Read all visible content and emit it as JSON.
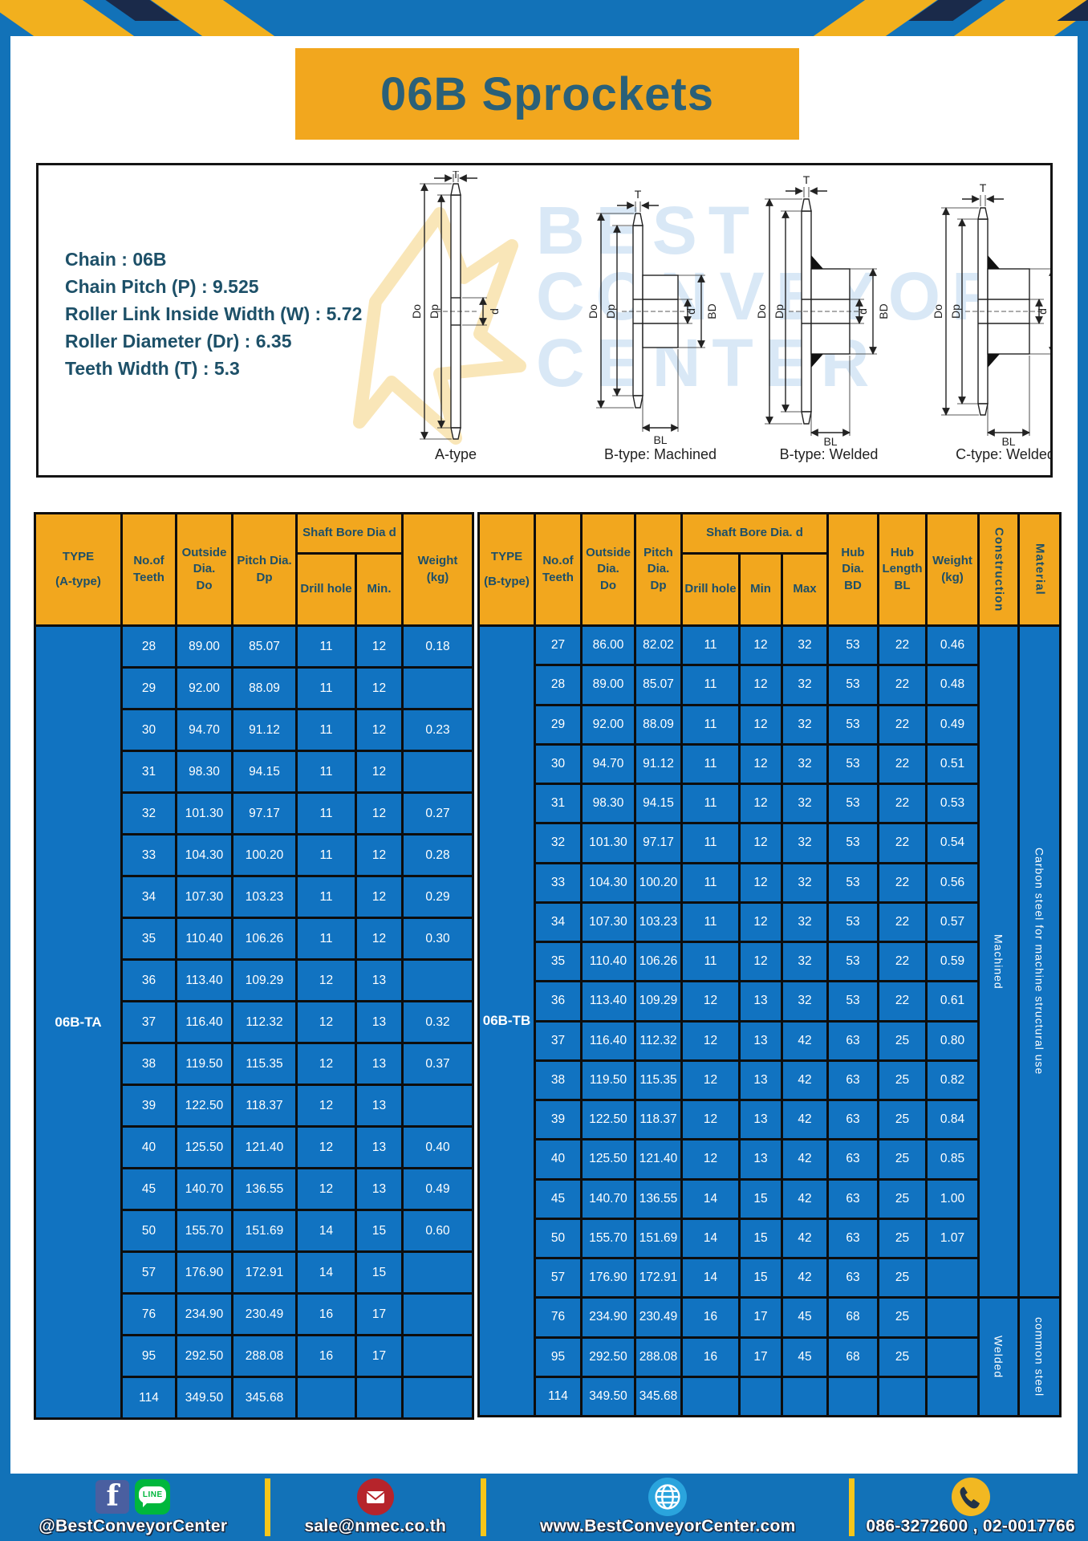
{
  "title": "06B Sprockets",
  "specs": {
    "lines": [
      "Chain : 06B",
      "Chain Pitch (P) : 9.525",
      "Roller Link Inside Width (W) : 5.72",
      "Roller Diameter (Dr) : 6.35",
      "Teeth Width (T) : 5.3"
    ]
  },
  "diagrams": {
    "labels": [
      "A-type",
      "B-type: Machined",
      "B-type: Welded",
      "C-type: Welded"
    ],
    "dims": {
      "T": "T",
      "Do": "Do",
      "Dp": "Dp",
      "d": "d",
      "BD": "BD",
      "BL": "BL"
    }
  },
  "watermark": {
    "lines": [
      "BEST",
      "CONVEYOR",
      "CENTER"
    ]
  },
  "table_a": {
    "headers": {
      "type": "TYPE",
      "type_sub": "(A-type)",
      "teeth": "No.of\nTeeth",
      "outside": "Outside\nDia.\nDo",
      "pitch": "Pitch Dia.\nDp",
      "shaft": "Shaft Bore Dia d",
      "drill": "Drill hole",
      "min": "Min.",
      "weight": "Weight\n(kg)"
    },
    "type_value": "06B-TA",
    "rows": [
      [
        "28",
        "89.00",
        "85.07",
        "11",
        "12",
        "0.18"
      ],
      [
        "29",
        "92.00",
        "88.09",
        "11",
        "12",
        ""
      ],
      [
        "30",
        "94.70",
        "91.12",
        "11",
        "12",
        "0.23"
      ],
      [
        "31",
        "98.30",
        "94.15",
        "11",
        "12",
        ""
      ],
      [
        "32",
        "101.30",
        "97.17",
        "11",
        "12",
        "0.27"
      ],
      [
        "33",
        "104.30",
        "100.20",
        "11",
        "12",
        "0.28"
      ],
      [
        "34",
        "107.30",
        "103.23",
        "11",
        "12",
        "0.29"
      ],
      [
        "35",
        "110.40",
        "106.26",
        "11",
        "12",
        "0.30"
      ],
      [
        "36",
        "113.40",
        "109.29",
        "12",
        "13",
        ""
      ],
      [
        "37",
        "116.40",
        "112.32",
        "12",
        "13",
        "0.32"
      ],
      [
        "38",
        "119.50",
        "115.35",
        "12",
        "13",
        "0.37"
      ],
      [
        "39",
        "122.50",
        "118.37",
        "12",
        "13",
        ""
      ],
      [
        "40",
        "125.50",
        "121.40",
        "12",
        "13",
        "0.40"
      ],
      [
        "45",
        "140.70",
        "136.55",
        "12",
        "13",
        "0.49"
      ],
      [
        "50",
        "155.70",
        "151.69",
        "14",
        "15",
        "0.60"
      ],
      [
        "57",
        "176.90",
        "172.91",
        "14",
        "15",
        ""
      ],
      [
        "76",
        "234.90",
        "230.49",
        "16",
        "17",
        ""
      ],
      [
        "95",
        "292.50",
        "288.08",
        "16",
        "17",
        ""
      ],
      [
        "114",
        "349.50",
        "345.68",
        "",
        "",
        ""
      ]
    ]
  },
  "table_b": {
    "headers": {
      "type": "TYPE",
      "type_sub": "(B-type)",
      "teeth": "No.of\nTeeth",
      "outside": "Outside\nDia.\nDo",
      "pitch": "Pitch\nDia.\nDp",
      "shaft": "Shaft Bore Dia. d",
      "drill": "Drill hole",
      "min": "Min",
      "max": "Max",
      "hub_dia": "Hub\nDia.\nBD",
      "hub_len": "Hub\nLength\nBL",
      "weight": "Weight\n(kg)",
      "construction": "Construction",
      "material": "Material"
    },
    "type_value": "06B-TB",
    "rows": [
      [
        "27",
        "86.00",
        "82.02",
        "11",
        "12",
        "32",
        "53",
        "22",
        "0.46"
      ],
      [
        "28",
        "89.00",
        "85.07",
        "11",
        "12",
        "32",
        "53",
        "22",
        "0.48"
      ],
      [
        "29",
        "92.00",
        "88.09",
        "11",
        "12",
        "32",
        "53",
        "22",
        "0.49"
      ],
      [
        "30",
        "94.70",
        "91.12",
        "11",
        "12",
        "32",
        "53",
        "22",
        "0.51"
      ],
      [
        "31",
        "98.30",
        "94.15",
        "11",
        "12",
        "32",
        "53",
        "22",
        "0.53"
      ],
      [
        "32",
        "101.30",
        "97.17",
        "11",
        "12",
        "32",
        "53",
        "22",
        "0.54"
      ],
      [
        "33",
        "104.30",
        "100.20",
        "11",
        "12",
        "32",
        "53",
        "22",
        "0.56"
      ],
      [
        "34",
        "107.30",
        "103.23",
        "11",
        "12",
        "32",
        "53",
        "22",
        "0.57"
      ],
      [
        "35",
        "110.40",
        "106.26",
        "11",
        "12",
        "32",
        "53",
        "22",
        "0.59"
      ],
      [
        "36",
        "113.40",
        "109.29",
        "12",
        "13",
        "32",
        "53",
        "22",
        "0.61"
      ],
      [
        "37",
        "116.40",
        "112.32",
        "12",
        "13",
        "42",
        "63",
        "25",
        "0.80"
      ],
      [
        "38",
        "119.50",
        "115.35",
        "12",
        "13",
        "42",
        "63",
        "25",
        "0.82"
      ],
      [
        "39",
        "122.50",
        "118.37",
        "12",
        "13",
        "42",
        "63",
        "25",
        "0.84"
      ],
      [
        "40",
        "125.50",
        "121.40",
        "12",
        "13",
        "42",
        "63",
        "25",
        "0.85"
      ],
      [
        "45",
        "140.70",
        "136.55",
        "14",
        "15",
        "42",
        "63",
        "25",
        "1.00"
      ],
      [
        "50",
        "155.70",
        "151.69",
        "14",
        "15",
        "42",
        "63",
        "25",
        "1.07"
      ],
      [
        "57",
        "176.90",
        "172.91",
        "14",
        "15",
        "42",
        "63",
        "25",
        ""
      ],
      [
        "76",
        "234.90",
        "230.49",
        "16",
        "17",
        "45",
        "68",
        "25",
        ""
      ],
      [
        "95",
        "292.50",
        "288.08",
        "16",
        "17",
        "45",
        "68",
        "25",
        ""
      ],
      [
        "114",
        "349.50",
        "345.68",
        "",
        "",
        "",
        "",
        "",
        ""
      ]
    ],
    "construction_groups": [
      {
        "label": "Machined",
        "span": 17
      },
      {
        "label": "Welded",
        "span": 3
      }
    ],
    "material_groups": [
      {
        "label": "Carbon steel for machine structural use",
        "span": 17
      },
      {
        "label": "common steel",
        "span": 3
      }
    ]
  },
  "footer": {
    "social": "@BestConveyorCenter",
    "line_label": "LINE",
    "fb_label": "f",
    "email": "sale@nmec.co.th",
    "website": "www.BestConveyorCenter.com",
    "phone": "086-3272600 , 02-0017766"
  },
  "colors": {
    "frame_blue": "#1272B8",
    "cell_blue": "#1173C1",
    "header_yellow": "#F2A71E",
    "divider_yellow": "#F6C61A",
    "title_text": "#2A6078",
    "grid_black": "#0D0D0D"
  }
}
